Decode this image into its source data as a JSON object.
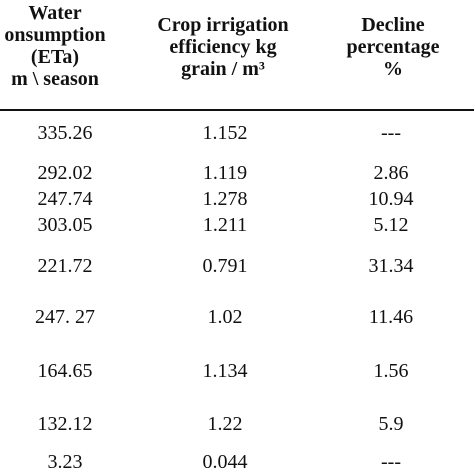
{
  "table": {
    "headers": [
      [
        "Water",
        "onsumption",
        "(ETa)",
        "m \\ season"
      ],
      [
        "Crop irrigation",
        "efficiency kg",
        "grain / m³"
      ],
      [
        "Decline",
        "percentage",
        "%"
      ]
    ],
    "rows": [
      [
        "335.26",
        "1.152",
        "---"
      ],
      [
        "292.02",
        "1.119",
        "2.86"
      ],
      [
        "247.74",
        "1.278",
        "10.94"
      ],
      [
        "303.05",
        "1.211",
        "5.12"
      ],
      [
        "221.72",
        "0.791",
        "31.34"
      ],
      [
        "247. 27",
        "1.02",
        "11.46"
      ],
      [
        "164.65",
        "1.134",
        "1.56"
      ],
      [
        "132.12",
        "1.22",
        "5.9"
      ],
      [
        "3.23",
        "0.044",
        "---"
      ]
    ]
  }
}
